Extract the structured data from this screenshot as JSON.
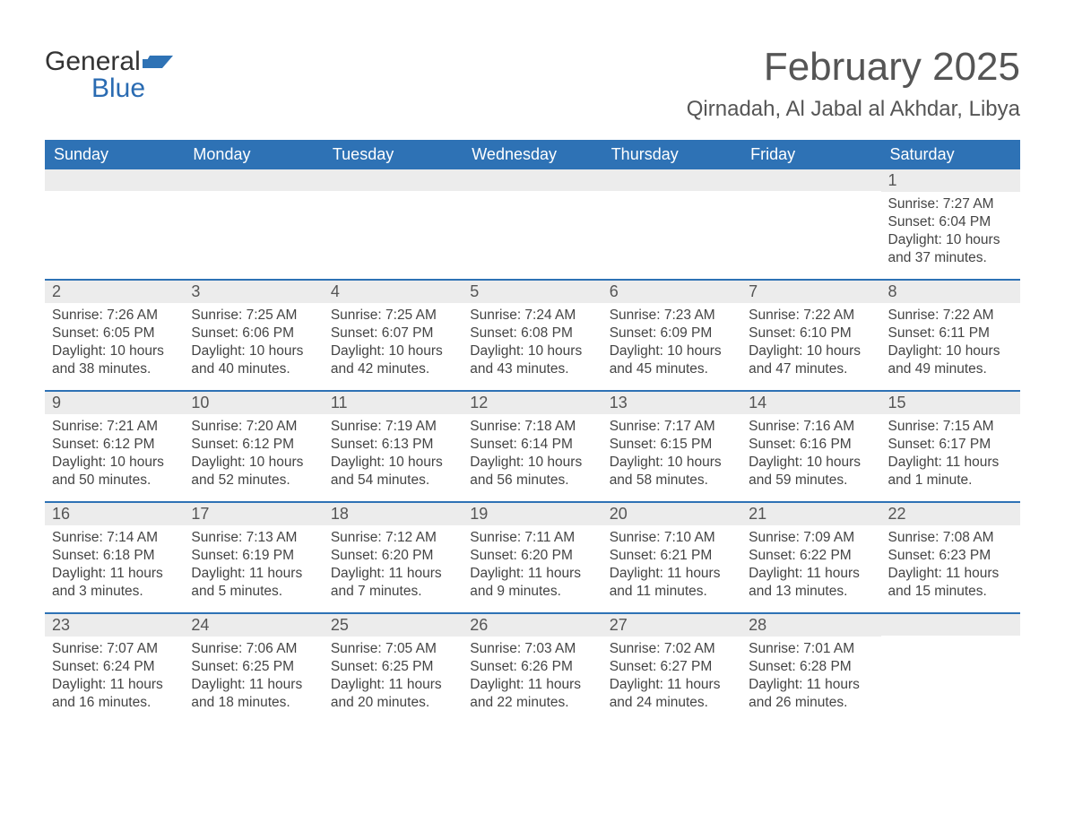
{
  "logo": {
    "text1": "General",
    "text2": "Blue"
  },
  "title": "February 2025",
  "location": "Qirnadah, Al Jabal al Akhdar, Libya",
  "colors": {
    "header_bg": "#2e72b5",
    "header_text": "#ffffff",
    "daynum_bg": "#ececec",
    "title_color": "#555555",
    "body_text": "#444444",
    "logo_blue": "#2a6bb2",
    "week_border": "#2e72b5"
  },
  "day_headers": [
    "Sunday",
    "Monday",
    "Tuesday",
    "Wednesday",
    "Thursday",
    "Friday",
    "Saturday"
  ],
  "weeks": [
    [
      {
        "num": "",
        "sunrise": "",
        "sunset": "",
        "daylight": ""
      },
      {
        "num": "",
        "sunrise": "",
        "sunset": "",
        "daylight": ""
      },
      {
        "num": "",
        "sunrise": "",
        "sunset": "",
        "daylight": ""
      },
      {
        "num": "",
        "sunrise": "",
        "sunset": "",
        "daylight": ""
      },
      {
        "num": "",
        "sunrise": "",
        "sunset": "",
        "daylight": ""
      },
      {
        "num": "",
        "sunrise": "",
        "sunset": "",
        "daylight": ""
      },
      {
        "num": "1",
        "sunrise": "Sunrise: 7:27 AM",
        "sunset": "Sunset: 6:04 PM",
        "daylight": "Daylight: 10 hours and 37 minutes."
      }
    ],
    [
      {
        "num": "2",
        "sunrise": "Sunrise: 7:26 AM",
        "sunset": "Sunset: 6:05 PM",
        "daylight": "Daylight: 10 hours and 38 minutes."
      },
      {
        "num": "3",
        "sunrise": "Sunrise: 7:25 AM",
        "sunset": "Sunset: 6:06 PM",
        "daylight": "Daylight: 10 hours and 40 minutes."
      },
      {
        "num": "4",
        "sunrise": "Sunrise: 7:25 AM",
        "sunset": "Sunset: 6:07 PM",
        "daylight": "Daylight: 10 hours and 42 minutes."
      },
      {
        "num": "5",
        "sunrise": "Sunrise: 7:24 AM",
        "sunset": "Sunset: 6:08 PM",
        "daylight": "Daylight: 10 hours and 43 minutes."
      },
      {
        "num": "6",
        "sunrise": "Sunrise: 7:23 AM",
        "sunset": "Sunset: 6:09 PM",
        "daylight": "Daylight: 10 hours and 45 minutes."
      },
      {
        "num": "7",
        "sunrise": "Sunrise: 7:22 AM",
        "sunset": "Sunset: 6:10 PM",
        "daylight": "Daylight: 10 hours and 47 minutes."
      },
      {
        "num": "8",
        "sunrise": "Sunrise: 7:22 AM",
        "sunset": "Sunset: 6:11 PM",
        "daylight": "Daylight: 10 hours and 49 minutes."
      }
    ],
    [
      {
        "num": "9",
        "sunrise": "Sunrise: 7:21 AM",
        "sunset": "Sunset: 6:12 PM",
        "daylight": "Daylight: 10 hours and 50 minutes."
      },
      {
        "num": "10",
        "sunrise": "Sunrise: 7:20 AM",
        "sunset": "Sunset: 6:12 PM",
        "daylight": "Daylight: 10 hours and 52 minutes."
      },
      {
        "num": "11",
        "sunrise": "Sunrise: 7:19 AM",
        "sunset": "Sunset: 6:13 PM",
        "daylight": "Daylight: 10 hours and 54 minutes."
      },
      {
        "num": "12",
        "sunrise": "Sunrise: 7:18 AM",
        "sunset": "Sunset: 6:14 PM",
        "daylight": "Daylight: 10 hours and 56 minutes."
      },
      {
        "num": "13",
        "sunrise": "Sunrise: 7:17 AM",
        "sunset": "Sunset: 6:15 PM",
        "daylight": "Daylight: 10 hours and 58 minutes."
      },
      {
        "num": "14",
        "sunrise": "Sunrise: 7:16 AM",
        "sunset": "Sunset: 6:16 PM",
        "daylight": "Daylight: 10 hours and 59 minutes."
      },
      {
        "num": "15",
        "sunrise": "Sunrise: 7:15 AM",
        "sunset": "Sunset: 6:17 PM",
        "daylight": "Daylight: 11 hours and 1 minute."
      }
    ],
    [
      {
        "num": "16",
        "sunrise": "Sunrise: 7:14 AM",
        "sunset": "Sunset: 6:18 PM",
        "daylight": "Daylight: 11 hours and 3 minutes."
      },
      {
        "num": "17",
        "sunrise": "Sunrise: 7:13 AM",
        "sunset": "Sunset: 6:19 PM",
        "daylight": "Daylight: 11 hours and 5 minutes."
      },
      {
        "num": "18",
        "sunrise": "Sunrise: 7:12 AM",
        "sunset": "Sunset: 6:20 PM",
        "daylight": "Daylight: 11 hours and 7 minutes."
      },
      {
        "num": "19",
        "sunrise": "Sunrise: 7:11 AM",
        "sunset": "Sunset: 6:20 PM",
        "daylight": "Daylight: 11 hours and 9 minutes."
      },
      {
        "num": "20",
        "sunrise": "Sunrise: 7:10 AM",
        "sunset": "Sunset: 6:21 PM",
        "daylight": "Daylight: 11 hours and 11 minutes."
      },
      {
        "num": "21",
        "sunrise": "Sunrise: 7:09 AM",
        "sunset": "Sunset: 6:22 PM",
        "daylight": "Daylight: 11 hours and 13 minutes."
      },
      {
        "num": "22",
        "sunrise": "Sunrise: 7:08 AM",
        "sunset": "Sunset: 6:23 PM",
        "daylight": "Daylight: 11 hours and 15 minutes."
      }
    ],
    [
      {
        "num": "23",
        "sunrise": "Sunrise: 7:07 AM",
        "sunset": "Sunset: 6:24 PM",
        "daylight": "Daylight: 11 hours and 16 minutes."
      },
      {
        "num": "24",
        "sunrise": "Sunrise: 7:06 AM",
        "sunset": "Sunset: 6:25 PM",
        "daylight": "Daylight: 11 hours and 18 minutes."
      },
      {
        "num": "25",
        "sunrise": "Sunrise: 7:05 AM",
        "sunset": "Sunset: 6:25 PM",
        "daylight": "Daylight: 11 hours and 20 minutes."
      },
      {
        "num": "26",
        "sunrise": "Sunrise: 7:03 AM",
        "sunset": "Sunset: 6:26 PM",
        "daylight": "Daylight: 11 hours and 22 minutes."
      },
      {
        "num": "27",
        "sunrise": "Sunrise: 7:02 AM",
        "sunset": "Sunset: 6:27 PM",
        "daylight": "Daylight: 11 hours and 24 minutes."
      },
      {
        "num": "28",
        "sunrise": "Sunrise: 7:01 AM",
        "sunset": "Sunset: 6:28 PM",
        "daylight": "Daylight: 11 hours and 26 minutes."
      },
      {
        "num": "",
        "sunrise": "",
        "sunset": "",
        "daylight": ""
      }
    ]
  ]
}
